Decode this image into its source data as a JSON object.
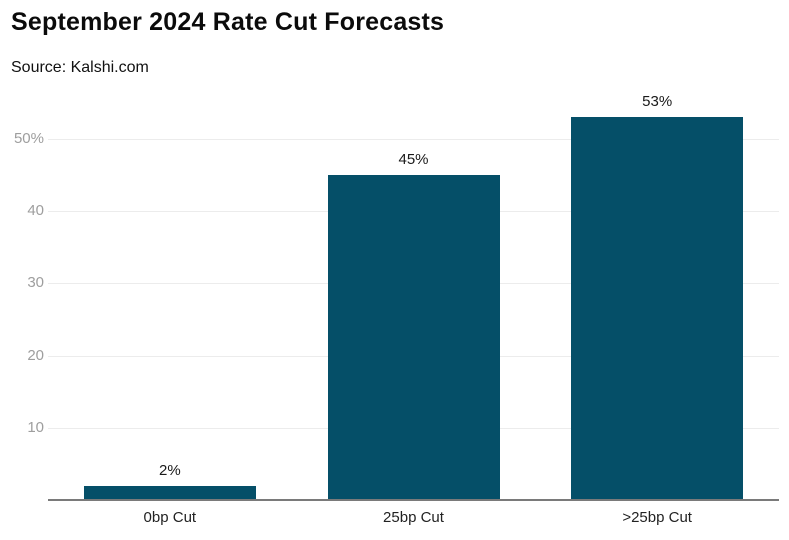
{
  "header": {
    "title": "September 2024 Rate Cut Forecasts",
    "source": "Source: Kalshi.com"
  },
  "chart_data": {
    "type": "bar",
    "title": "September 2024 Rate Cut Forecasts",
    "source": "Source: Kalshi.com",
    "categories": [
      "0bp Cut",
      "25bp Cut",
      ">25bp Cut"
    ],
    "values": [
      2,
      45,
      53
    ],
    "value_labels": [
      "2%",
      "45%",
      "53%"
    ],
    "xlabel": "",
    "ylabel": "",
    "ylim": [
      0,
      55
    ],
    "yticks": [
      {
        "value": 10,
        "label": "10"
      },
      {
        "value": 20,
        "label": "20"
      },
      {
        "value": 30,
        "label": "30"
      },
      {
        "value": 40,
        "label": "40"
      },
      {
        "value": 50,
        "label": "50%"
      }
    ],
    "grid": true,
    "legend_position": "none",
    "colors": {
      "bar": "#054f68",
      "grid": "#ececec",
      "axis_line": "#7a7a7a",
      "tick_label": "#9e9e9e",
      "value_label": "#1a1a1a",
      "category_label": "#222222"
    }
  }
}
